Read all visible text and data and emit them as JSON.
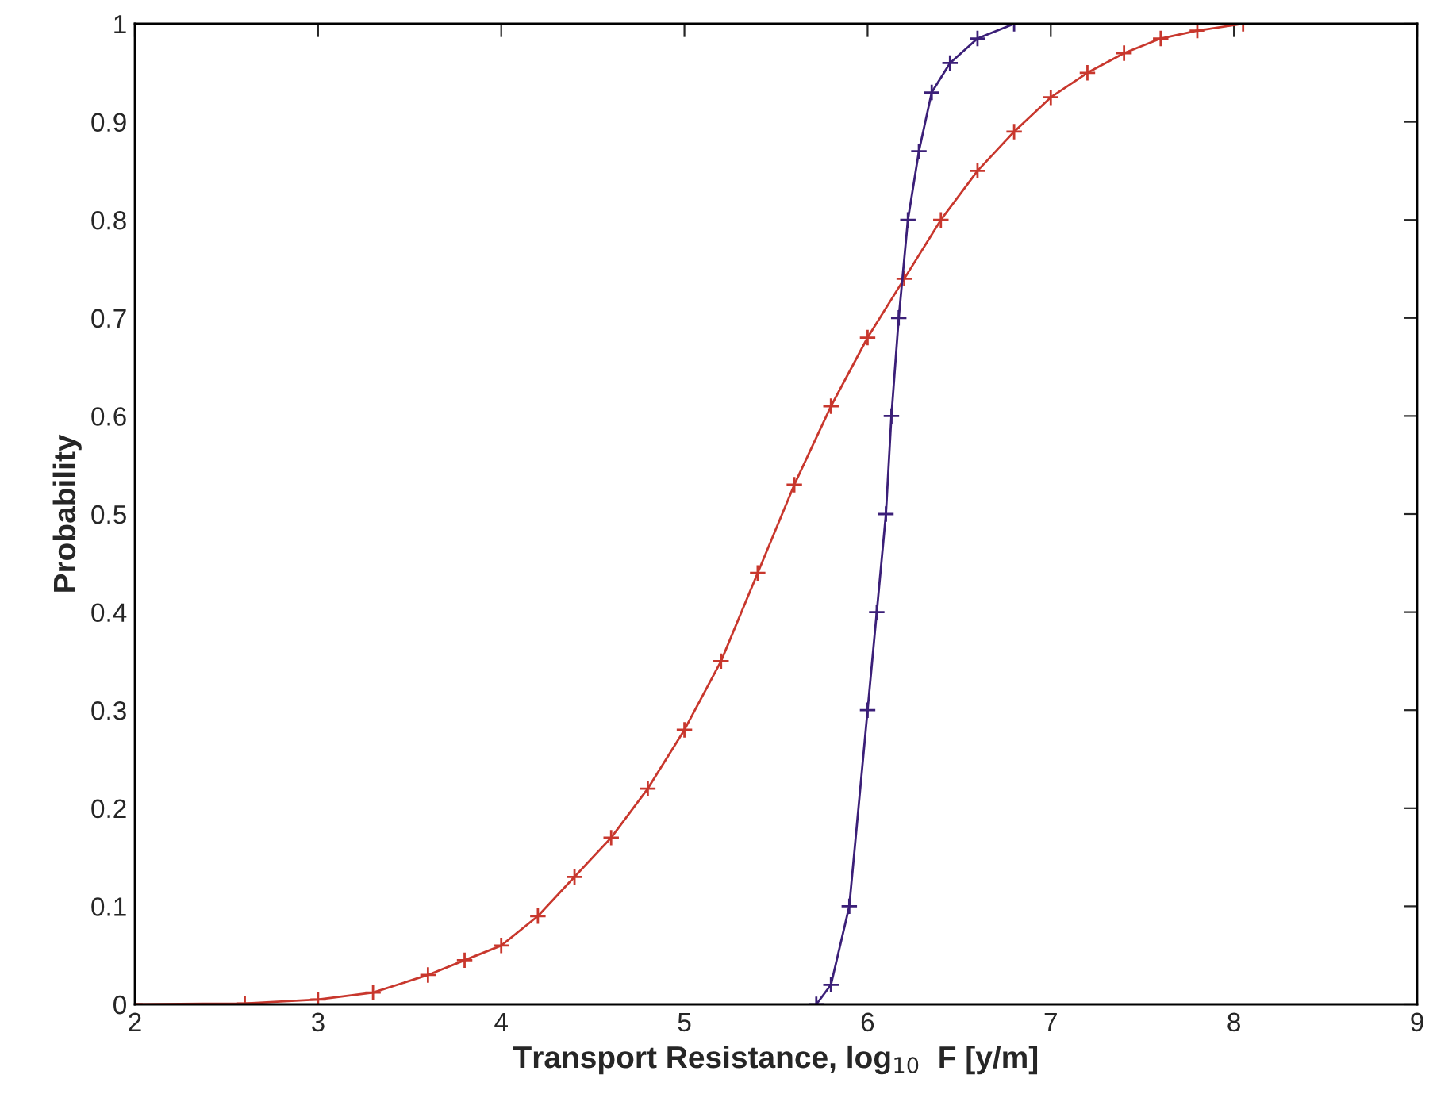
{
  "chart_data": {
    "type": "line",
    "xlabel": "Transport Resistance, log$_{10}$  F [y/m]",
    "ylabel": "Probability",
    "xlim": [
      2,
      9
    ],
    "xticks": [
      2,
      3,
      4,
      5,
      6,
      7,
      8,
      9
    ],
    "ylim": [
      0,
      1
    ],
    "yticks": [
      0,
      0.1,
      0.2,
      0.3,
      0.4,
      0.5,
      0.6,
      0.7,
      0.8,
      0.9,
      1
    ],
    "grid": false,
    "legend": false,
    "marker": "cross",
    "line_style": "solid",
    "series": [
      {
        "color": "#c8372d",
        "x": [
          2.0,
          2.6,
          3.0,
          3.3,
          3.6,
          3.8,
          4.0,
          4.2,
          4.4,
          4.6,
          4.8,
          5.0,
          5.2,
          5.4,
          5.6,
          5.8,
          6.0,
          6.2,
          6.4,
          6.6,
          6.8,
          7.0,
          7.2,
          7.4,
          7.6,
          7.8,
          8.05
        ],
        "values": [
          0,
          0.001,
          0.005,
          0.012,
          0.03,
          0.045,
          0.06,
          0.09,
          0.13,
          0.17,
          0.22,
          0.28,
          0.35,
          0.44,
          0.53,
          0.61,
          0.68,
          0.74,
          0.8,
          0.85,
          0.89,
          0.925,
          0.95,
          0.97,
          0.985,
          0.993,
          1.0
        ]
      },
      {
        "color": "#3b1f78",
        "x": [
          5.72,
          5.8,
          5.9,
          6.0,
          6.05,
          6.1,
          6.13,
          6.17,
          6.22,
          6.28,
          6.35,
          6.45,
          6.6,
          6.8
        ],
        "values": [
          0,
          0.02,
          0.1,
          0.3,
          0.4,
          0.5,
          0.6,
          0.7,
          0.8,
          0.87,
          0.93,
          0.96,
          0.985,
          1.0
        ]
      }
    ]
  }
}
